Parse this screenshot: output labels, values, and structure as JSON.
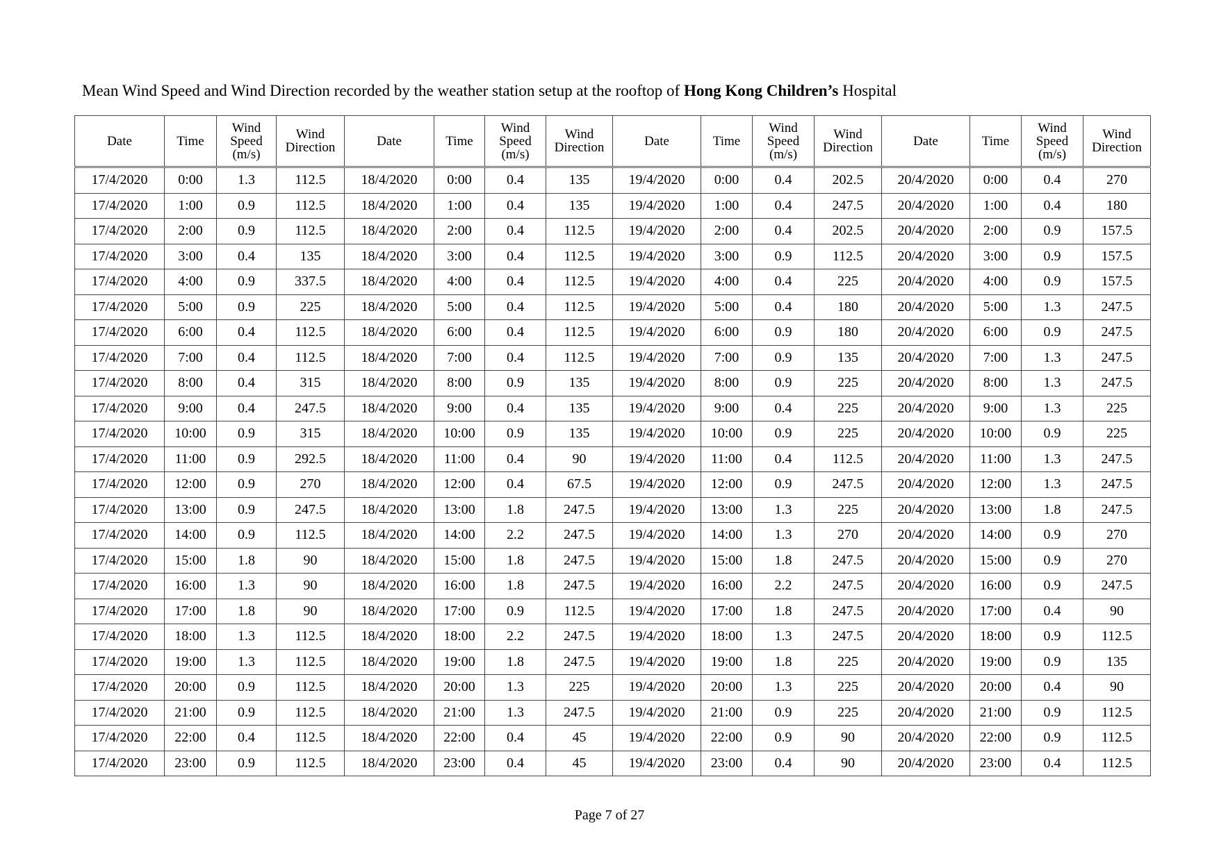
{
  "title": {
    "part1": "Mean Wind Speed and Wind Direction recorded by the weather station setup at the rooftop of ",
    "bold": "Hong Kong Children’s",
    "part2": " Hospital"
  },
  "headers": {
    "date": "Date",
    "time": "Time",
    "speed_l1": "Wind",
    "speed_l2": "Speed",
    "speed_l3": "(m/s)",
    "dir_l1": "Wind",
    "dir_l2": "Direction"
  },
  "times": [
    "0:00",
    "1:00",
    "2:00",
    "3:00",
    "4:00",
    "5:00",
    "6:00",
    "7:00",
    "8:00",
    "9:00",
    "10:00",
    "11:00",
    "12:00",
    "13:00",
    "14:00",
    "15:00",
    "16:00",
    "17:00",
    "18:00",
    "19:00",
    "20:00",
    "21:00",
    "22:00",
    "23:00"
  ],
  "days": [
    {
      "date": "17/4/2020",
      "speed": [
        "1.3",
        "0.9",
        "0.9",
        "0.4",
        "0.9",
        "0.9",
        "0.4",
        "0.4",
        "0.4",
        "0.4",
        "0.9",
        "0.9",
        "0.9",
        "0.9",
        "0.9",
        "1.8",
        "1.3",
        "1.8",
        "1.3",
        "1.3",
        "0.9",
        "0.9",
        "0.4",
        "0.9"
      ],
      "direction": [
        "112.5",
        "112.5",
        "112.5",
        "135",
        "337.5",
        "225",
        "112.5",
        "112.5",
        "315",
        "247.5",
        "315",
        "292.5",
        "270",
        "247.5",
        "112.5",
        "90",
        "90",
        "90",
        "112.5",
        "112.5",
        "112.5",
        "112.5",
        "112.5",
        "112.5"
      ]
    },
    {
      "date": "18/4/2020",
      "speed": [
        "0.4",
        "0.4",
        "0.4",
        "0.4",
        "0.4",
        "0.4",
        "0.4",
        "0.4",
        "0.9",
        "0.4",
        "0.9",
        "0.4",
        "0.4",
        "1.8",
        "2.2",
        "1.8",
        "1.8",
        "0.9",
        "2.2",
        "1.8",
        "1.3",
        "1.3",
        "0.4",
        "0.4"
      ],
      "direction": [
        "135",
        "135",
        "112.5",
        "112.5",
        "112.5",
        "112.5",
        "112.5",
        "112.5",
        "135",
        "135",
        "135",
        "90",
        "67.5",
        "247.5",
        "247.5",
        "247.5",
        "247.5",
        "112.5",
        "247.5",
        "247.5",
        "225",
        "247.5",
        "45",
        "45"
      ]
    },
    {
      "date": "19/4/2020",
      "speed": [
        "0.4",
        "0.4",
        "0.4",
        "0.9",
        "0.4",
        "0.4",
        "0.9",
        "0.9",
        "0.9",
        "0.4",
        "0.9",
        "0.4",
        "0.9",
        "1.3",
        "1.3",
        "1.8",
        "2.2",
        "1.8",
        "1.3",
        "1.8",
        "1.3",
        "0.9",
        "0.9",
        "0.4"
      ],
      "direction": [
        "202.5",
        "247.5",
        "202.5",
        "112.5",
        "225",
        "180",
        "180",
        "135",
        "225",
        "225",
        "225",
        "112.5",
        "247.5",
        "225",
        "270",
        "247.5",
        "247.5",
        "247.5",
        "247.5",
        "225",
        "225",
        "225",
        "90",
        "90"
      ]
    },
    {
      "date": "20/4/2020",
      "speed": [
        "0.4",
        "0.4",
        "0.9",
        "0.9",
        "0.9",
        "1.3",
        "0.9",
        "1.3",
        "1.3",
        "1.3",
        "0.9",
        "1.3",
        "1.3",
        "1.8",
        "0.9",
        "0.9",
        "0.9",
        "0.4",
        "0.9",
        "0.9",
        "0.4",
        "0.9",
        "0.9",
        "0.4"
      ],
      "direction": [
        "270",
        "180",
        "157.5",
        "157.5",
        "157.5",
        "247.5",
        "247.5",
        "247.5",
        "247.5",
        "225",
        "225",
        "247.5",
        "247.5",
        "247.5",
        "270",
        "270",
        "247.5",
        "90",
        "112.5",
        "135",
        "90",
        "112.5",
        "112.5",
        "112.5"
      ]
    }
  ],
  "footer": "Page 7 of 27"
}
